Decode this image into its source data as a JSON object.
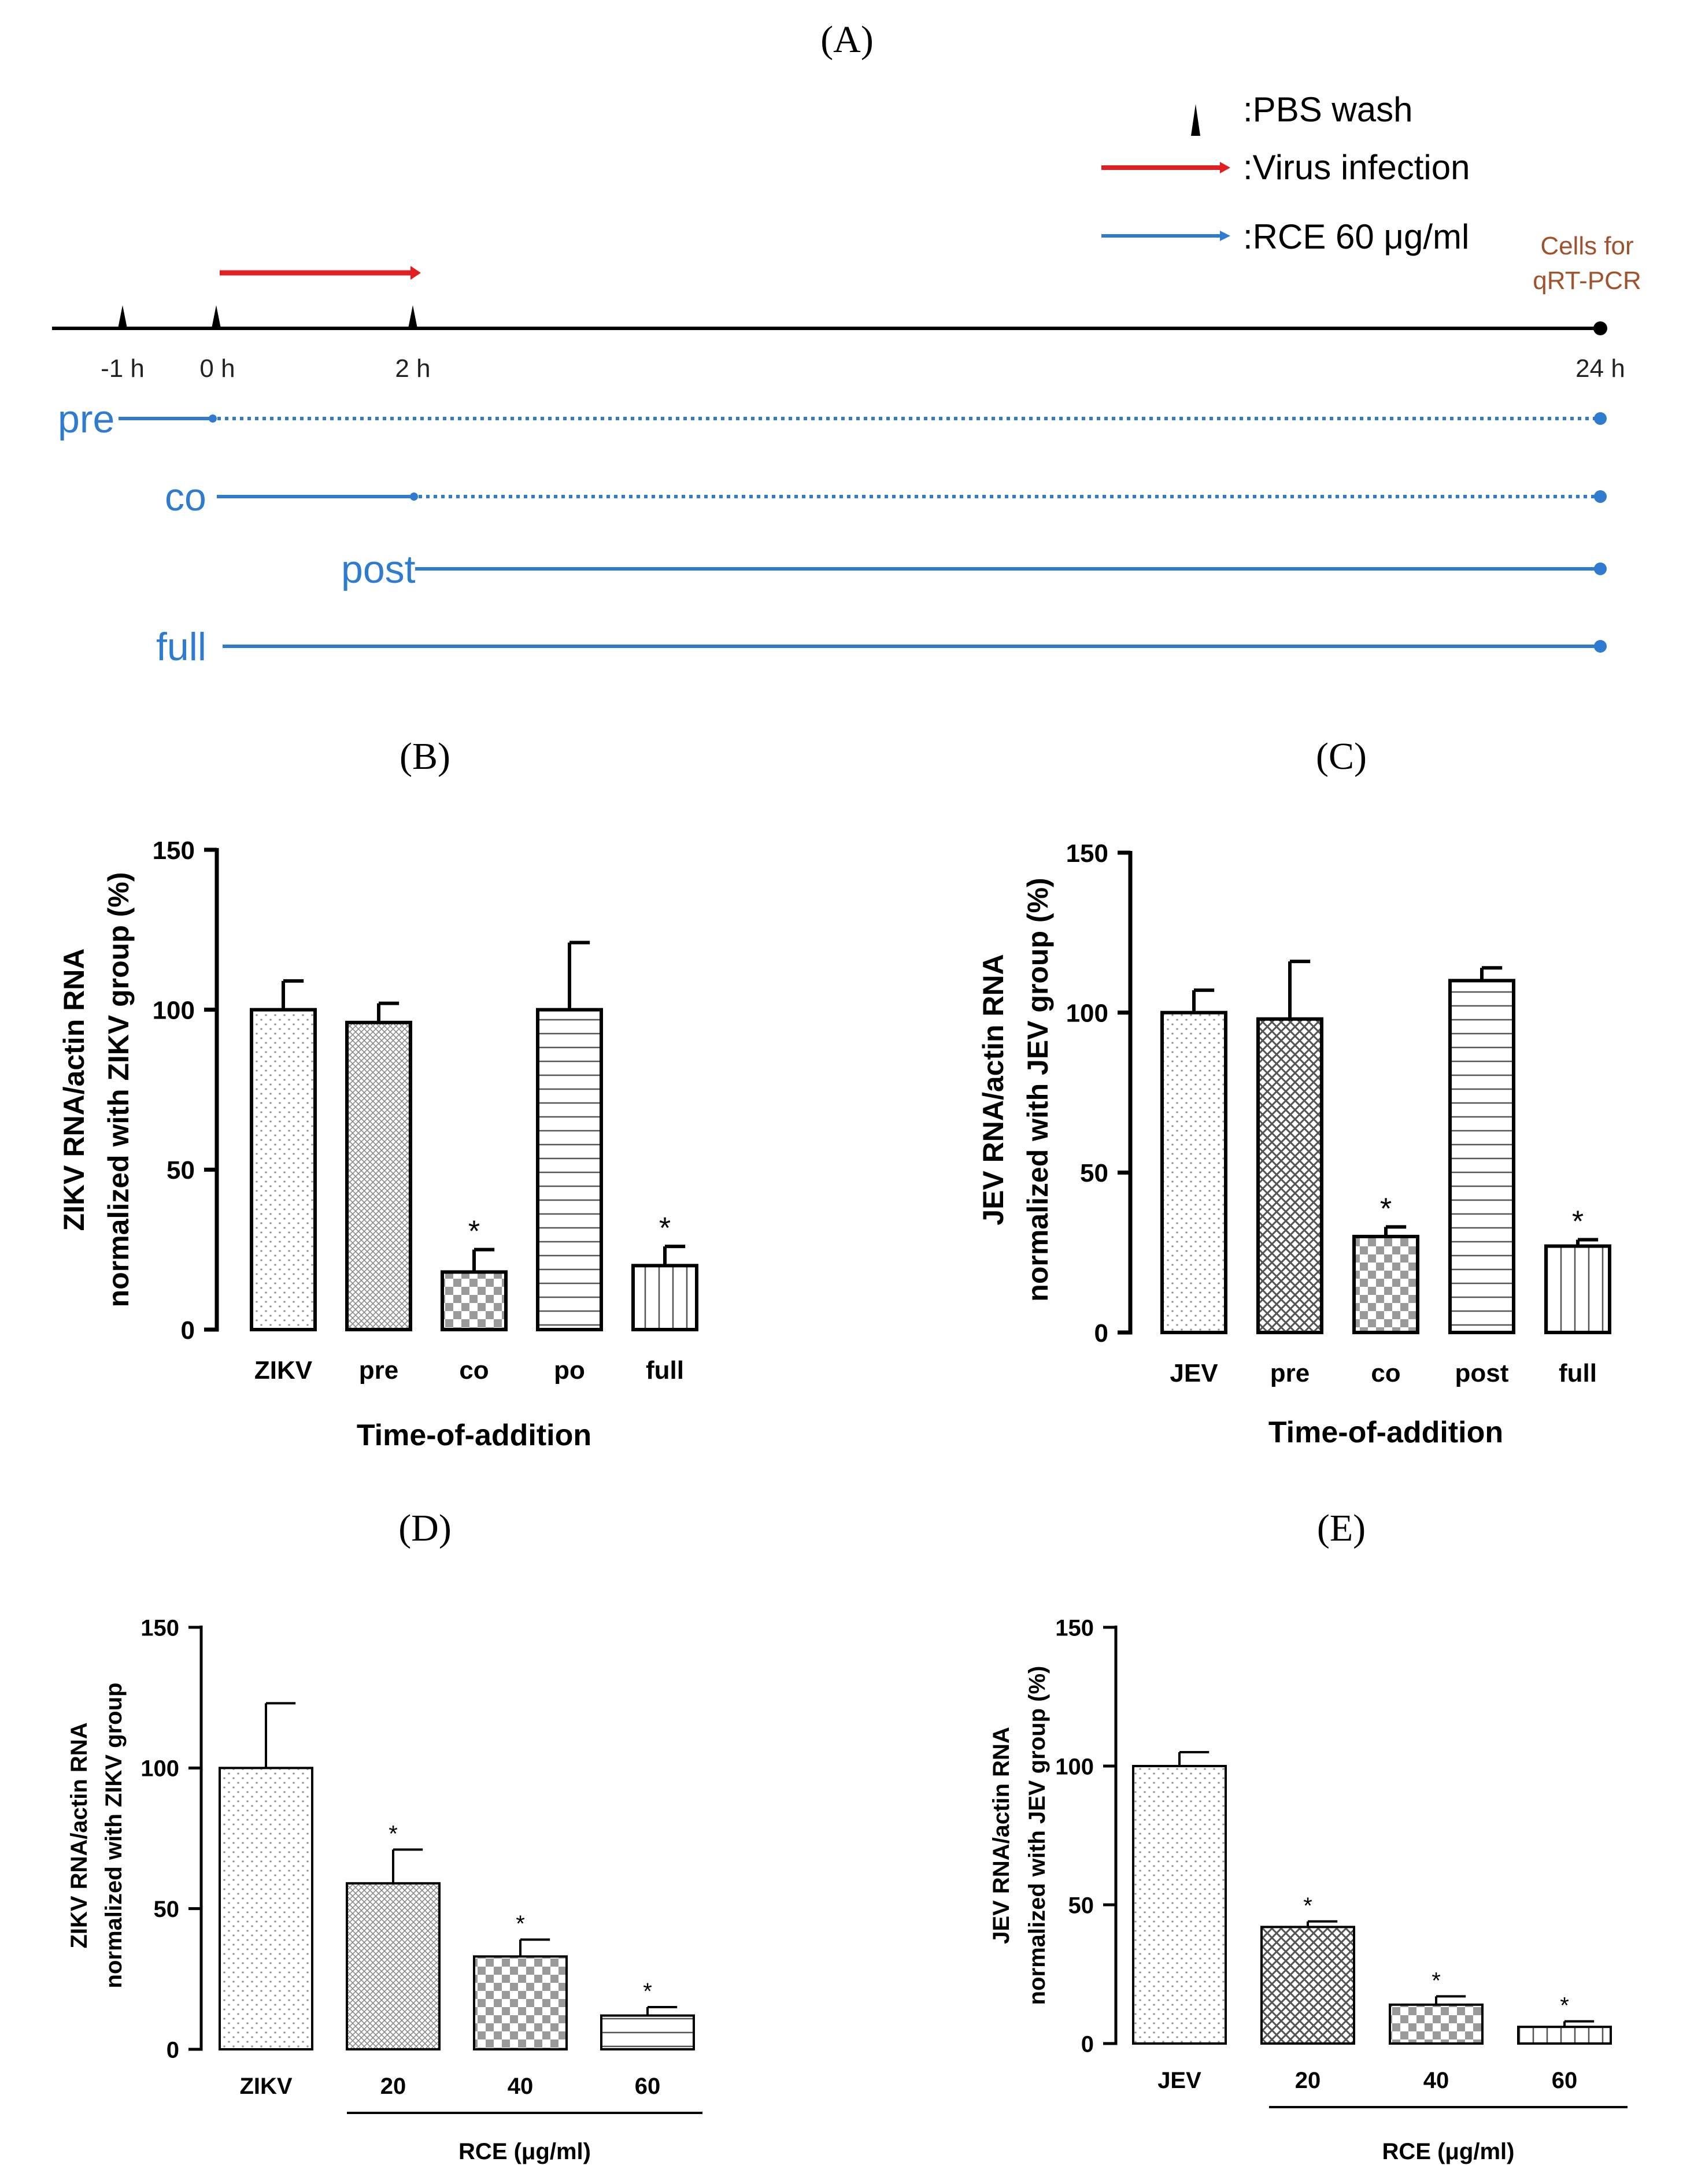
{
  "panels": {
    "A": "(A)",
    "B": "(B)",
    "C": "(C)",
    "D": "(D)",
    "E": "(E)"
  },
  "colors": {
    "virus": "#e02020",
    "rce": "#2f7bd0",
    "cells": "#a0522d",
    "axis": "#000000"
  },
  "schematic": {
    "legend": {
      "pbs": ":PBS wash",
      "virus": ":Virus infection",
      "rce": ":RCE 60 μg/ml"
    },
    "times": [
      "-1 h",
      "0 h",
      "2 h",
      "24 h"
    ],
    "cells_line1": "Cells for",
    "cells_line2": "qRT-PCR",
    "rows": [
      "pre",
      "co",
      "post",
      "full"
    ]
  },
  "chart_data": [
    {
      "id": "B",
      "type": "bar",
      "ylabel_line1": "ZIKV RNA/actin RNA",
      "ylabel_line2": "normalized with ZIKV group (%)",
      "xlabel": "Time-of-addition",
      "categories": [
        "ZIKV",
        "pre",
        "co",
        "po",
        "full"
      ],
      "values": [
        100,
        96,
        18,
        100,
        20
      ],
      "errors": [
        9,
        6,
        7,
        21,
        6
      ],
      "significant": [
        false,
        false,
        true,
        false,
        true
      ],
      "patterns": [
        "dots",
        "grid",
        "checker",
        "hlines",
        "vlines"
      ],
      "yticks": [
        "0",
        "50",
        "100",
        "150"
      ],
      "ylim": [
        0,
        150
      ],
      "star": "*"
    },
    {
      "id": "C",
      "type": "bar",
      "ylabel_line1": "JEV RNA/actin RNA",
      "ylabel_line2": "normalized with JEV group (%)",
      "xlabel": "Time-of-addition",
      "categories": [
        "JEV",
        "pre",
        "co",
        "post",
        "full"
      ],
      "values": [
        100,
        98,
        30,
        110,
        27
      ],
      "errors": [
        7,
        18,
        3,
        4,
        2
      ],
      "significant": [
        false,
        false,
        true,
        false,
        true
      ],
      "patterns": [
        "dots",
        "cross",
        "checker",
        "hlines",
        "vlines"
      ],
      "yticks": [
        "0",
        "50",
        "100",
        "150"
      ],
      "ylim": [
        0,
        150
      ],
      "star": "*"
    },
    {
      "id": "D",
      "type": "bar",
      "ylabel_line1": "ZIKV RNA/actin RNA",
      "ylabel_line2": "normalized with ZIKV group",
      "xlabel": "RCE (μg/ml)",
      "categories": [
        "ZIKV",
        "20",
        "40",
        "60"
      ],
      "values": [
        100,
        59,
        33,
        12
      ],
      "errors": [
        23,
        12,
        6,
        3
      ],
      "significant": [
        false,
        true,
        true,
        true
      ],
      "patterns": [
        "dots",
        "grid",
        "checker",
        "hlines"
      ],
      "yticks": [
        "0",
        "50",
        "100",
        "150"
      ],
      "ylim": [
        0,
        150
      ],
      "star": "*"
    },
    {
      "id": "E",
      "type": "bar",
      "ylabel_line1": "JEV RNA/actin RNA",
      "ylabel_line2": "normalized with JEV group (%)",
      "xlabel": "RCE (μg/ml)",
      "categories": [
        "JEV",
        "20",
        "40",
        "60"
      ],
      "values": [
        100,
        42,
        14,
        6
      ],
      "errors": [
        5,
        2,
        3,
        2
      ],
      "significant": [
        false,
        true,
        true,
        true
      ],
      "patterns": [
        "dots",
        "cross",
        "checker",
        "vlines"
      ],
      "yticks": [
        "0",
        "50",
        "100",
        "150"
      ],
      "ylim": [
        0,
        150
      ],
      "star": "*"
    }
  ]
}
